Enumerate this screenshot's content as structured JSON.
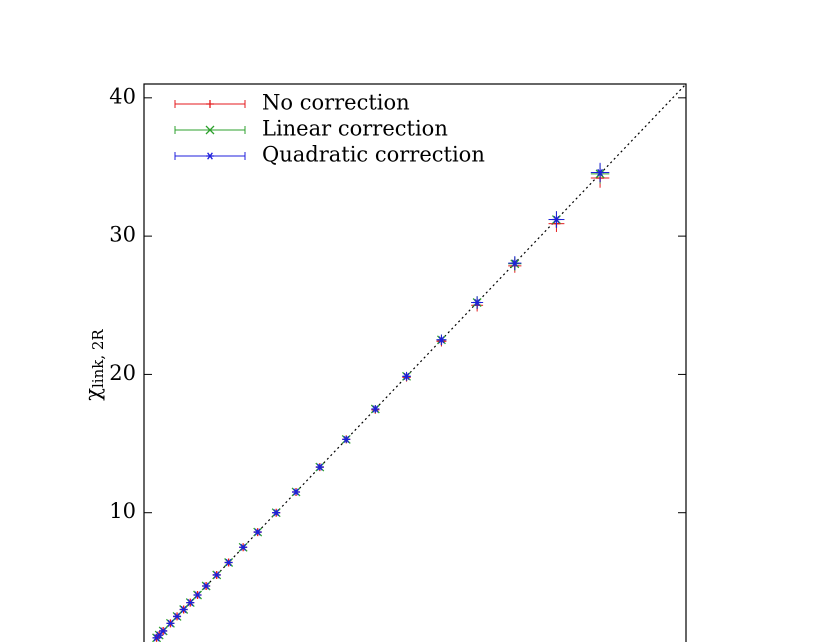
{
  "chart_data": {
    "type": "errorbar",
    "y_label": {
      "symbol": "χ",
      "subscript": "link, 2R"
    },
    "x": [
      0.95,
      1.15,
      1.45,
      2.0,
      2.5,
      3.0,
      3.5,
      4.05,
      4.7,
      5.5,
      6.4,
      7.5,
      8.6,
      10.0,
      11.5,
      13.3,
      15.3,
      17.5,
      19.86,
      22.5,
      25.2,
      28.05,
      31.2,
      34.5
    ],
    "xerr": [
      0.02,
      0.02,
      0.03,
      0.04,
      0.05,
      0.06,
      0.07,
      0.08,
      0.09,
      0.1,
      0.12,
      0.14,
      0.16,
      0.18,
      0.2,
      0.22,
      0.25,
      0.28,
      0.32,
      0.38,
      0.45,
      0.5,
      0.6,
      0.7
    ],
    "series": [
      {
        "name": "No correction",
        "color": "#e41a1c",
        "marker": "plus",
        "values": [
          0.95,
          1.15,
          1.45,
          2.0,
          2.5,
          3.0,
          3.5,
          4.05,
          4.7,
          5.5,
          6.4,
          7.5,
          8.6,
          10.0,
          11.5,
          13.3,
          15.3,
          17.45,
          19.8,
          22.4,
          25.0,
          27.85,
          30.9,
          34.2
        ],
        "yerr": [
          0.02,
          0.02,
          0.03,
          0.04,
          0.05,
          0.06,
          0.07,
          0.08,
          0.09,
          0.1,
          0.12,
          0.14,
          0.16,
          0.18,
          0.2,
          0.22,
          0.25,
          0.28,
          0.32,
          0.38,
          0.45,
          0.5,
          0.6,
          0.7
        ]
      },
      {
        "name": "Linear correction",
        "color": "#2ca02c",
        "marker": "x",
        "values": [
          0.95,
          1.15,
          1.45,
          2.0,
          2.5,
          3.0,
          3.5,
          4.05,
          4.7,
          5.5,
          6.4,
          7.5,
          8.6,
          10.0,
          11.5,
          13.3,
          15.3,
          17.5,
          19.86,
          22.5,
          25.2,
          28.0,
          31.2,
          34.5
        ],
        "yerr": [
          0.02,
          0.02,
          0.03,
          0.04,
          0.05,
          0.06,
          0.07,
          0.08,
          0.09,
          0.1,
          0.12,
          0.14,
          0.16,
          0.18,
          0.2,
          0.22,
          0.25,
          0.28,
          0.32,
          0.38,
          0.45,
          0.5,
          0.6,
          0.7
        ]
      },
      {
        "name": "Quadratic correction",
        "color": "#1f1fdc",
        "marker": "star",
        "values": [
          0.95,
          1.15,
          1.45,
          2.0,
          2.5,
          3.0,
          3.5,
          4.05,
          4.7,
          5.5,
          6.4,
          7.5,
          8.6,
          10.0,
          11.5,
          13.3,
          15.3,
          17.5,
          19.86,
          22.5,
          25.2,
          28.05,
          31.2,
          34.6
        ],
        "yerr": [
          0.02,
          0.02,
          0.03,
          0.04,
          0.05,
          0.06,
          0.07,
          0.08,
          0.09,
          0.1,
          0.12,
          0.14,
          0.16,
          0.18,
          0.2,
          0.22,
          0.25,
          0.28,
          0.32,
          0.38,
          0.45,
          0.5,
          0.6,
          0.7
        ]
      }
    ],
    "xlim": [
      0,
      41
    ],
    "ylim": [
      0,
      41
    ],
    "yticks": [
      10,
      20,
      30,
      40
    ],
    "diagonal": true,
    "legend": "upper-left"
  }
}
